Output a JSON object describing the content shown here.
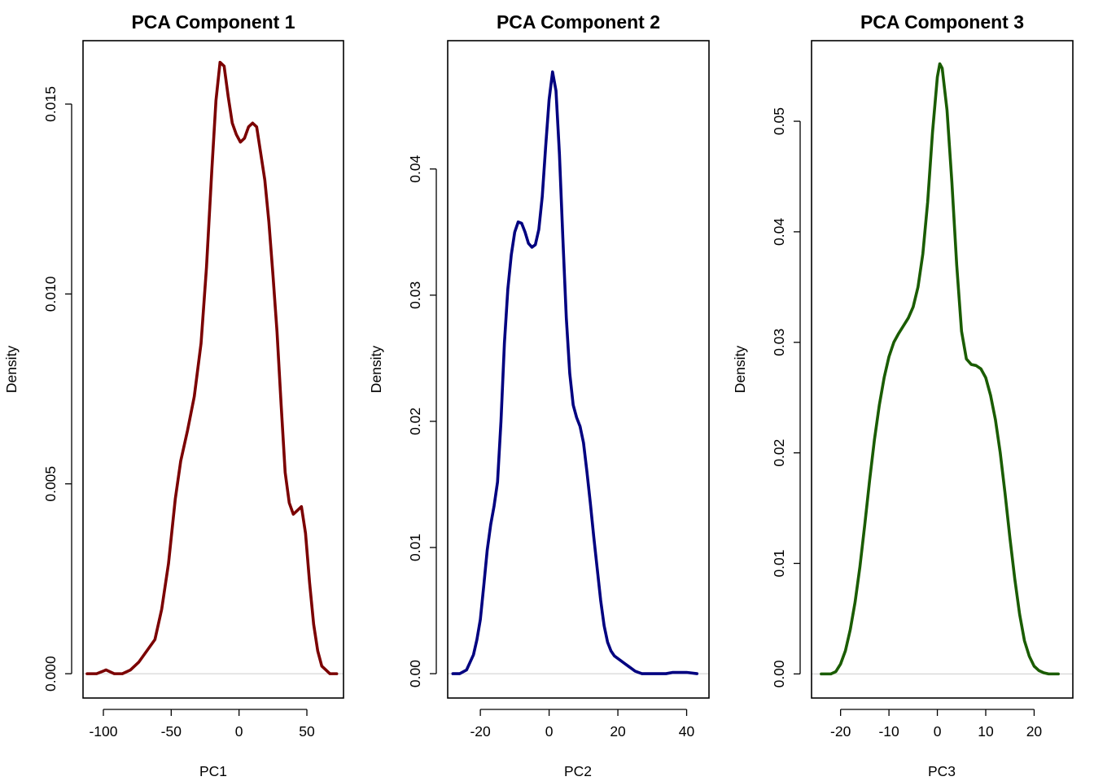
{
  "chart_data": [
    {
      "type": "line",
      "title": "PCA Component 1",
      "xlabel": "PC1",
      "ylabel": "Density",
      "xlim": [
        -115,
        77
      ],
      "ylim": [
        -0.00064,
        0.01667
      ],
      "xticks": [
        -100,
        -50,
        0,
        50
      ],
      "xtick_labels": [
        "-100",
        "-50",
        "0",
        "50"
      ],
      "yticks": [
        0,
        0.005,
        0.01,
        0.015
      ],
      "ytick_labels": [
        "0.000",
        "0.005",
        "0.010",
        "0.015"
      ],
      "baseline": 0,
      "grid": false,
      "color": "#7b0000",
      "series": [
        {
          "x": [
            -112,
            -105,
            -98,
            -92,
            -86,
            -80,
            -74,
            -68,
            -62,
            -57,
            -52,
            -47,
            -43,
            -38,
            -33,
            -28,
            -24,
            -20,
            -17,
            -14,
            -11,
            -8,
            -5,
            -2,
            1,
            4,
            7,
            10,
            13,
            16,
            19,
            22,
            25,
            28,
            31,
            34,
            37,
            40,
            43,
            46,
            49,
            52,
            55,
            58,
            61,
            64,
            67,
            70,
            72
          ],
          "y": [
            0.0,
            0.0,
            0.0001,
            0.0,
            -0.0,
            0.0001,
            0.0003,
            0.0006,
            0.0009,
            0.0017,
            0.0029,
            0.0046,
            0.0056,
            0.0064,
            0.0073,
            0.0087,
            0.0107,
            0.0133,
            0.0151,
            0.0161,
            0.016,
            0.0152,
            0.0145,
            0.0142,
            0.014,
            0.0141,
            0.0144,
            0.0145,
            0.0144,
            0.0137,
            0.013,
            0.0119,
            0.0105,
            0.009,
            0.0071,
            0.0053,
            0.0045,
            0.0042,
            0.0043,
            0.0044,
            0.0037,
            0.0024,
            0.0013,
            0.0006,
            0.0002,
            0.0001,
            0.0,
            0.0,
            0.0
          ]
        }
      ]
    },
    {
      "type": "line",
      "title": "PCA Component 2",
      "xlabel": "PC2",
      "ylabel": "Density",
      "xlim": [
        -29.5,
        46.5
      ],
      "ylim": [
        -0.00193,
        0.05017
      ],
      "xticks": [
        -20,
        0,
        20,
        40
      ],
      "xtick_labels": [
        "-20",
        "0",
        "20",
        "40"
      ],
      "yticks": [
        0,
        0.01,
        0.02,
        0.03,
        0.04
      ],
      "ytick_labels": [
        "0.00",
        "0.01",
        "0.02",
        "0.03",
        "0.04"
      ],
      "baseline": 0,
      "grid": false,
      "color": "#000080",
      "series": [
        {
          "x": [
            -28,
            -26,
            -24,
            -22,
            -21,
            -20,
            -19,
            -18,
            -17,
            -16,
            -15,
            -14,
            -13,
            -12,
            -11,
            -10,
            -9,
            -8,
            -7,
            -6,
            -5,
            -4,
            -3,
            -2,
            -1,
            0,
            1,
            2,
            3,
            4,
            5,
            6,
            7,
            8,
            9,
            10,
            11,
            12,
            13,
            14,
            15,
            16,
            17,
            18,
            19,
            20,
            21,
            22,
            23,
            24,
            25,
            26,
            27,
            28,
            30,
            32,
            34,
            36,
            38,
            40,
            43
          ],
          "y": [
            0.0,
            0.0,
            0.0003,
            0.0015,
            0.0027,
            0.0043,
            0.007,
            0.0098,
            0.0118,
            0.0133,
            0.0152,
            0.02,
            0.0262,
            0.0305,
            0.0332,
            0.035,
            0.0358,
            0.0357,
            0.035,
            0.0341,
            0.0338,
            0.034,
            0.0352,
            0.0378,
            0.0418,
            0.0455,
            0.0477,
            0.0462,
            0.0412,
            0.0345,
            0.0282,
            0.0238,
            0.0213,
            0.0203,
            0.0196,
            0.0183,
            0.016,
            0.0135,
            0.0108,
            0.0083,
            0.0058,
            0.0038,
            0.0025,
            0.0018,
            0.0014,
            0.0012,
            0.001,
            0.0008,
            0.0006,
            0.0004,
            0.0002,
            0.0001,
            0.0,
            0.0,
            0.0,
            0.0,
            0.0,
            0.0001,
            0.0001,
            0.0001,
            0.0
          ]
        }
      ]
    },
    {
      "type": "line",
      "title": "PCA Component 3",
      "xlabel": "PC3",
      "ylabel": "Density",
      "xlim": [
        -26,
        28
      ],
      "ylim": [
        -0.00218,
        0.05729
      ],
      "xticks": [
        -20,
        -10,
        0,
        10,
        20
      ],
      "xtick_labels": [
        "-20",
        "-10",
        "0",
        "10",
        "20"
      ],
      "yticks": [
        0,
        0.01,
        0.02,
        0.03,
        0.04,
        0.05
      ],
      "ytick_labels": [
        "0.00",
        "0.01",
        "0.02",
        "0.03",
        "0.04",
        "0.05"
      ],
      "baseline": 0,
      "grid": false,
      "color": "#1a5c00",
      "series": [
        {
          "x": [
            -24,
            -22,
            -21,
            -20,
            -19,
            -18,
            -17,
            -16,
            -15,
            -14,
            -13,
            -12,
            -11,
            -10,
            -9,
            -8,
            -7,
            -6,
            -5,
            -4,
            -3,
            -2,
            -1,
            0,
            0.5,
            1,
            2,
            3,
            4,
            5,
            6,
            7,
            8,
            9,
            10,
            11,
            12,
            13,
            14,
            15,
            16,
            17,
            18,
            19,
            20,
            21,
            22,
            23,
            25
          ],
          "y": [
            0.0,
            0.0,
            0.0002,
            0.0009,
            0.0021,
            0.004,
            0.0065,
            0.0097,
            0.0135,
            0.0175,
            0.0212,
            0.0243,
            0.0268,
            0.0287,
            0.03,
            0.0308,
            0.0315,
            0.0322,
            0.0332,
            0.035,
            0.038,
            0.0427,
            0.049,
            0.054,
            0.0552,
            0.0548,
            0.051,
            0.0445,
            0.037,
            0.031,
            0.0285,
            0.028,
            0.0279,
            0.0276,
            0.0268,
            0.0252,
            0.023,
            0.02,
            0.0163,
            0.0123,
            0.0086,
            0.0054,
            0.003,
            0.0016,
            0.0007,
            0.0003,
            0.0001,
            0.0,
            0.0
          ]
        }
      ]
    }
  ]
}
